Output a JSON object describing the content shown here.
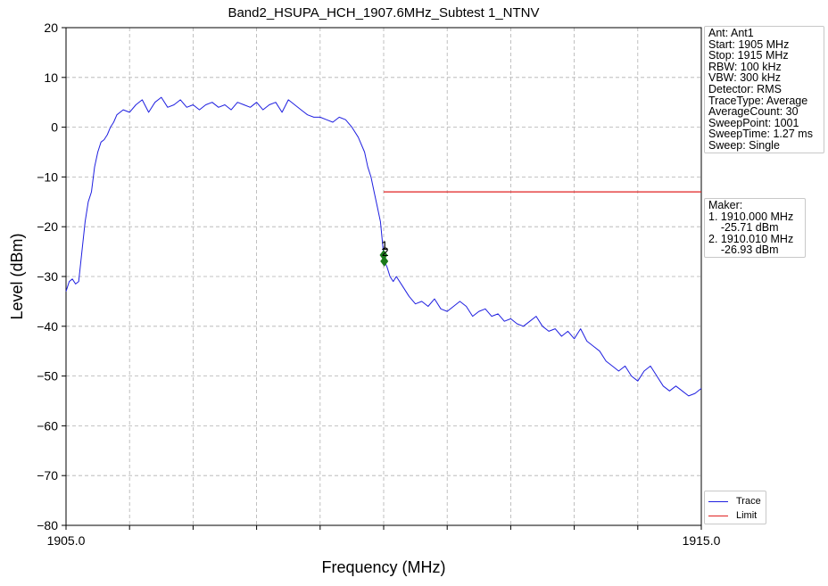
{
  "chart_data": {
    "type": "line",
    "title": "Band2_HSUPA_HCH_1907.6MHz_Subtest 1_NTNV",
    "xlabel": "Frequency (MHz)",
    "ylabel": "Level (dBm)",
    "xlim": [
      1905.0,
      1915.0
    ],
    "ylim": [
      -80,
      20
    ],
    "x_tick_labels": [
      {
        "value": 1905.0,
        "label": "1905.0"
      },
      {
        "value": 1915.0,
        "label": "1915.0"
      }
    ],
    "x_minor_ticks": [
      1906,
      1907,
      1908,
      1909,
      1910,
      1911,
      1912,
      1913,
      1914
    ],
    "y_ticks": [
      20,
      10,
      0,
      -10,
      -20,
      -30,
      -40,
      -50,
      -60,
      -70,
      -80
    ],
    "y_tick_labels": [
      "20",
      "10",
      "0",
      "−10",
      "−20",
      "−30",
      "−40",
      "−50",
      "−60",
      "−70",
      "−80"
    ],
    "grid": true,
    "legend_placement": "lower-right outside",
    "series": [
      {
        "name": "Trace",
        "color": "#1f1fe0",
        "x": [
          1905.0,
          1905.05,
          1905.1,
          1905.15,
          1905.2,
          1905.25,
          1905.3,
          1905.35,
          1905.4,
          1905.45,
          1905.5,
          1905.55,
          1905.6,
          1905.65,
          1905.7,
          1905.75,
          1905.8,
          1905.9,
          1906.0,
          1906.1,
          1906.2,
          1906.3,
          1906.4,
          1906.5,
          1906.6,
          1906.7,
          1906.8,
          1906.9,
          1907.0,
          1907.1,
          1907.2,
          1907.3,
          1907.4,
          1907.5,
          1907.6,
          1907.7,
          1907.8,
          1907.9,
          1908.0,
          1908.1,
          1908.2,
          1908.3,
          1908.4,
          1908.5,
          1908.6,
          1908.7,
          1908.8,
          1908.9,
          1909.0,
          1909.1,
          1909.2,
          1909.3,
          1909.4,
          1909.5,
          1909.6,
          1909.7,
          1909.75,
          1909.8,
          1909.85,
          1909.9,
          1909.95,
          1910.0,
          1910.01,
          1910.05,
          1910.1,
          1910.15,
          1910.2,
          1910.3,
          1910.4,
          1910.5,
          1910.6,
          1910.7,
          1910.8,
          1910.9,
          1911.0,
          1911.1,
          1911.2,
          1911.3,
          1911.4,
          1911.5,
          1911.6,
          1911.7,
          1911.8,
          1911.9,
          1912.0,
          1912.1,
          1912.2,
          1912.3,
          1912.4,
          1912.5,
          1912.6,
          1912.7,
          1912.8,
          1912.9,
          1913.0,
          1913.1,
          1913.2,
          1913.3,
          1913.4,
          1913.5,
          1913.6,
          1913.7,
          1913.8,
          1913.9,
          1914.0,
          1914.1,
          1914.2,
          1914.3,
          1914.4,
          1914.5,
          1914.6,
          1914.7,
          1914.8,
          1914.9,
          1915.0
        ],
        "y": [
          -33,
          -31,
          -30.5,
          -31.5,
          -31,
          -25,
          -19,
          -15,
          -13,
          -8,
          -5,
          -3,
          -2.5,
          -1.5,
          0,
          1,
          2.5,
          3.5,
          3,
          4.5,
          5.5,
          3,
          5,
          6,
          4,
          4.5,
          5.5,
          4,
          4.5,
          3.5,
          4.5,
          5,
          4,
          4.5,
          3.5,
          5,
          4.5,
          4,
          5,
          3.5,
          4.5,
          5,
          3,
          5.5,
          4.5,
          3.5,
          2.5,
          2,
          2,
          1.5,
          1,
          2,
          1.5,
          0,
          -2,
          -5,
          -8,
          -10,
          -13,
          -16,
          -19,
          -25.71,
          -26.93,
          -28,
          -30,
          -31,
          -30,
          -32,
          -34,
          -35.5,
          -35,
          -36,
          -34.5,
          -36.5,
          -37,
          -36,
          -35,
          -36,
          -38,
          -37,
          -36.5,
          -38,
          -37.5,
          -39,
          -38.5,
          -39.5,
          -40,
          -39,
          -38,
          -40,
          -41,
          -40.5,
          -42,
          -41,
          -42.5,
          -40.5,
          -43,
          -44,
          -45,
          -47,
          -48,
          -49,
          -48,
          -50,
          -51,
          -49,
          -48,
          -50,
          -52,
          -53,
          -52,
          -53,
          -54,
          -53.5,
          -52.5
        ]
      },
      {
        "name": "Limit",
        "color": "#e02020",
        "x": [
          1910.0,
          1915.0
        ],
        "y": [
          -13,
          -13
        ]
      }
    ],
    "markers": [
      {
        "label": "1",
        "x": 1910.0,
        "y": -25.71
      },
      {
        "label": "2",
        "x": 1910.01,
        "y": -26.93
      }
    ],
    "info_panel": [
      "Ant: Ant1",
      "Start: 1905 MHz",
      "Stop: 1915 MHz",
      "RBW: 100 kHz",
      "VBW: 300 kHz",
      "Detector: RMS",
      "TraceType: Average",
      "AverageCount: 30",
      "SweepPoint: 1001",
      "SweepTime: 1.27 ms",
      "Sweep: Single"
    ],
    "marker_panel": [
      "Maker:",
      "1. 1910.000 MHz",
      "    -25.71 dBm",
      "2. 1910.010 MHz",
      "    -26.93 dBm"
    ]
  },
  "colors": {
    "trace": "#1f1fe0",
    "limit": "#e02020",
    "marker": "#1a7a1a",
    "grid": "#b0b0b0"
  }
}
